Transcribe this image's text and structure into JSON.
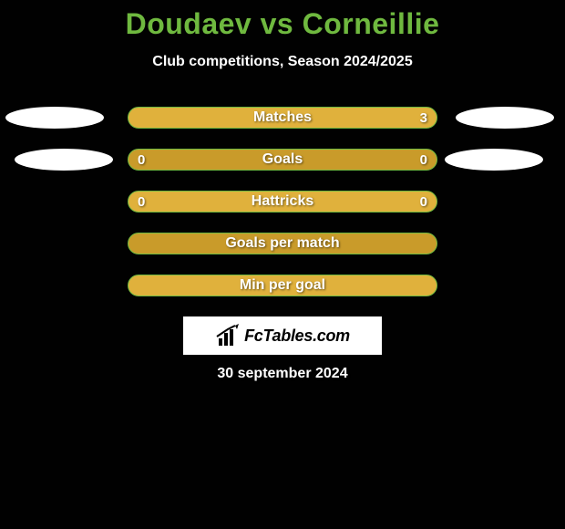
{
  "title": "Doudaev vs Corneillie",
  "subtitle": "Club competitions, Season 2024/2025",
  "date": "30 september 2024",
  "brand": "FcTables.com",
  "colors": {
    "background": "#010101",
    "accent_green": "#6fb93f",
    "bar_light": "#e0b13c",
    "bar_dark": "#c99b2a",
    "text_white": "#ffffff",
    "ellipse": "#ffffff"
  },
  "rows": [
    {
      "label": "Matches",
      "left": "",
      "right": "3",
      "bg": "light",
      "ellipse_left": true,
      "ellipse_right": true,
      "ellipse_row2": false
    },
    {
      "label": "Goals",
      "left": "0",
      "right": "0",
      "bg": "dark",
      "ellipse_left": true,
      "ellipse_right": true,
      "ellipse_row2": true
    },
    {
      "label": "Hattricks",
      "left": "0",
      "right": "0",
      "bg": "light",
      "ellipse_left": false,
      "ellipse_right": false,
      "ellipse_row2": false
    },
    {
      "label": "Goals per match",
      "left": "",
      "right": "",
      "bg": "dark",
      "ellipse_left": false,
      "ellipse_right": false,
      "ellipse_row2": false
    },
    {
      "label": "Min per goal",
      "left": "",
      "right": "",
      "bg": "light",
      "ellipse_left": false,
      "ellipse_right": false,
      "ellipse_row2": false
    }
  ]
}
